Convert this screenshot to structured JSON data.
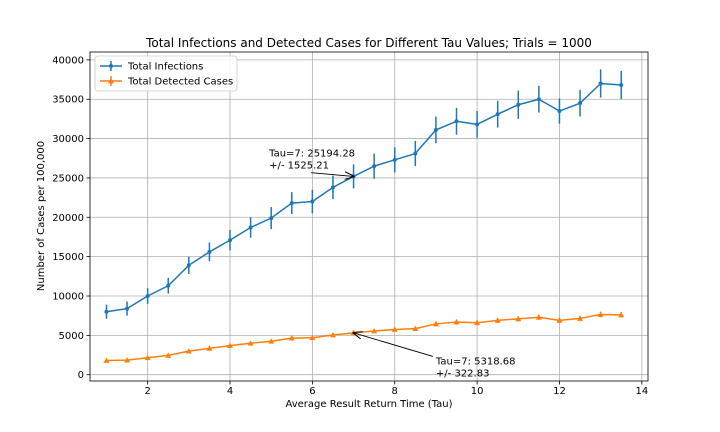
{
  "chart_data": {
    "type": "line",
    "title": "Total Infections and Detected Cases for Different Tau Values; Trials = 1000",
    "xlabel": "Average Result Return Time (Tau)",
    "ylabel": "Number of Cases per 100,000",
    "xlim": [
      0.6,
      14.15
    ],
    "ylim": [
      -800,
      41000
    ],
    "xticks": [
      2,
      4,
      6,
      8,
      10,
      12,
      14
    ],
    "yticks": [
      0,
      5000,
      10000,
      15000,
      20000,
      25000,
      30000,
      35000,
      40000
    ],
    "grid": true,
    "legend_position": "upper-left",
    "x": [
      1,
      1.5,
      2,
      2.5,
      3,
      3.5,
      4,
      4.5,
      5,
      5.5,
      6,
      6.5,
      7,
      7.5,
      8,
      8.5,
      9,
      9.5,
      10,
      10.5,
      11,
      11.5,
      12,
      12.5,
      13,
      13.5
    ],
    "series": [
      {
        "name": "Total Infections",
        "color": "#1f77b4",
        "marker": "point",
        "values": [
          8000,
          8400,
          10000,
          11300,
          13900,
          15600,
          17100,
          18700,
          19900,
          21800,
          22000,
          23800,
          25194.28,
          26500,
          27300,
          28100,
          31100,
          32200,
          31800,
          33100,
          34300,
          35000,
          33500,
          34500,
          37000,
          36800
        ],
        "errors": [
          900,
          900,
          1000,
          1000,
          1100,
          1200,
          1300,
          1300,
          1400,
          1400,
          1500,
          1500,
          1525.21,
          1600,
          1600,
          1600,
          1700,
          1700,
          1700,
          1700,
          1800,
          1700,
          1600,
          1700,
          1800,
          1800
        ]
      },
      {
        "name": "Total Detected Cases",
        "color": "#ff7f0e",
        "marker": "tri",
        "values": [
          1800,
          1850,
          2150,
          2450,
          3000,
          3350,
          3700,
          4000,
          4250,
          4650,
          4700,
          5050,
          5318.68,
          5550,
          5750,
          5850,
          6450,
          6700,
          6600,
          6900,
          7100,
          7300,
          6900,
          7150,
          7650,
          7600
        ],
        "errors": [
          100,
          110,
          120,
          130,
          150,
          160,
          180,
          190,
          200,
          220,
          230,
          240,
          322.83,
          260,
          270,
          280,
          300,
          310,
          320,
          320,
          330,
          340,
          330,
          340,
          350,
          350
        ]
      }
    ],
    "annotations": [
      {
        "lines": [
          "Tau=7: 25194.28",
          "+/- 1525.21"
        ],
        "target": [
          7,
          25194.28
        ],
        "text_at": [
          4.95,
          27700
        ]
      },
      {
        "lines": [
          "Tau=7: 5318.68",
          "+/- 322.83"
        ],
        "target": [
          7,
          5318.68
        ],
        "text_at": [
          9.0,
          1300
        ]
      }
    ]
  }
}
